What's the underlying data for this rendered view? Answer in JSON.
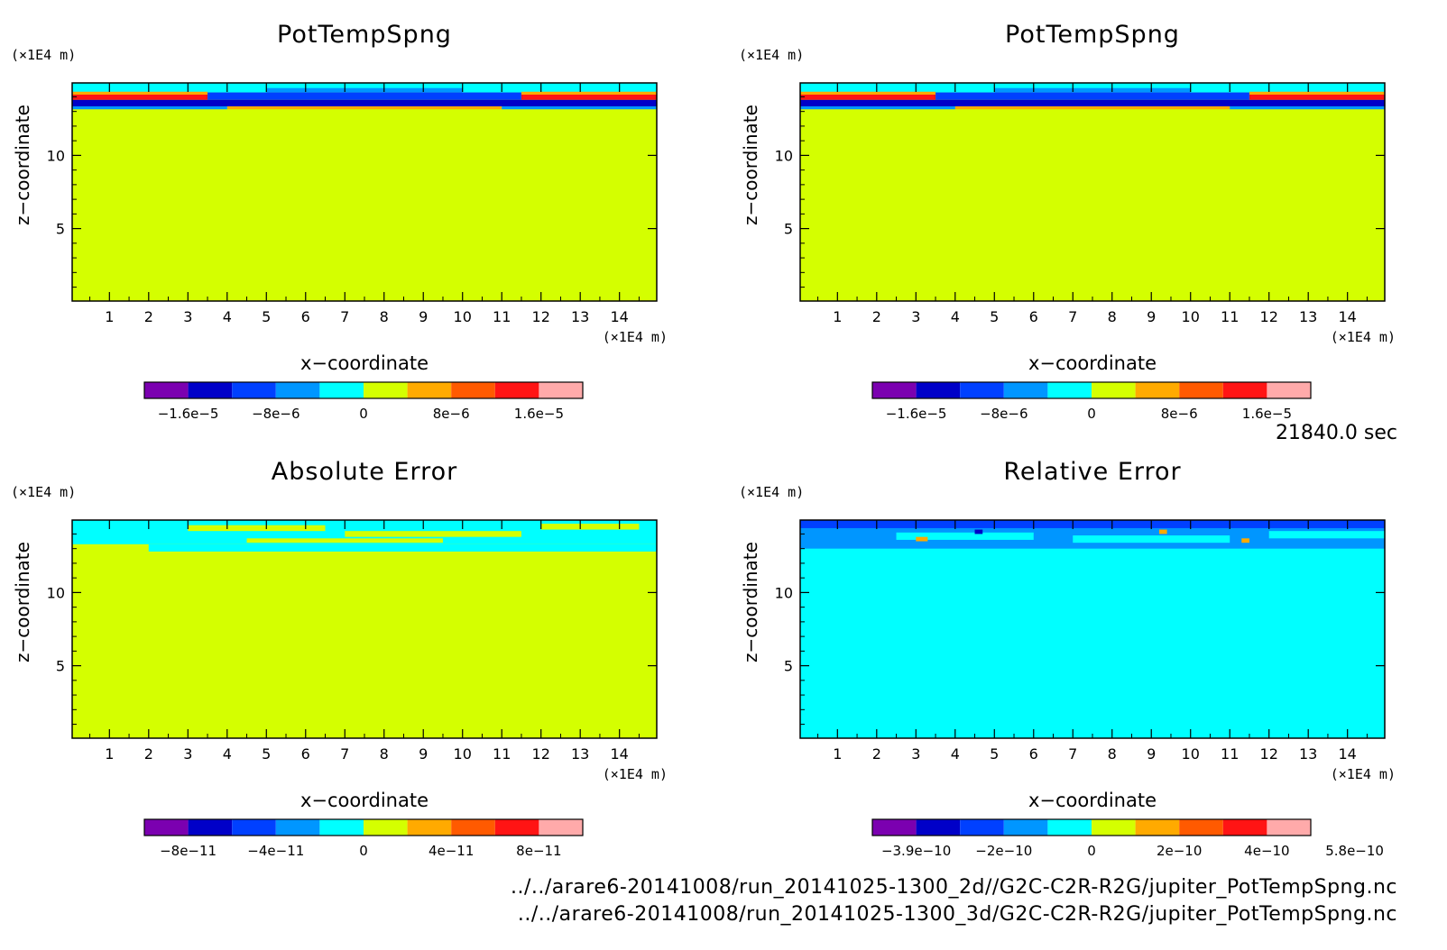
{
  "time_label": "21840.0 sec",
  "footer": {
    "path_2d": "../../arare6-20141008/run_20141025-1300_2d//G2C-C2R-R2G/jupiter_PotTempSpng.nc",
    "path_3d": "../../arare6-20141008/run_20141025-1300_3d/G2C-C2R-R2G/jupiter_PotTempSpng.nc"
  },
  "chart_data": [
    {
      "type": "heatmap",
      "title": "PotTempSpng",
      "xlabel": "x−coordinate",
      "ylabel": "z−coordinate",
      "x_unit": "(×1E4 m)",
      "y_unit": "(×1E4 m)",
      "xlim": [
        0.05,
        14.95
      ],
      "ylim": [
        0.05,
        14.95
      ],
      "x_ticks": [
        "1",
        "2",
        "3",
        "4",
        "5",
        "6",
        "7",
        "8",
        "9",
        "10",
        "11",
        "12",
        "13",
        "14"
      ],
      "y_ticks": [
        "5",
        "10"
      ],
      "field": "sponge",
      "background_color": "#d4ff00",
      "colorbar": {
        "colors": [
          "#7b00b0",
          "#0000c8",
          "#0040ff",
          "#0096ff",
          "#00ffff",
          "#d4ff00",
          "#ffaa00",
          "#ff5a00",
          "#ff1414",
          "#ffaaaa"
        ],
        "tick_labels": [
          "−1.6e−5",
          "−8e−6",
          "0",
          "8e−6",
          "1.6e−5"
        ]
      }
    },
    {
      "type": "heatmap",
      "title": "PotTempSpng",
      "xlabel": "x−coordinate",
      "ylabel": "z−coordinate",
      "x_unit": "(×1E4 m)",
      "y_unit": "(×1E4 m)",
      "xlim": [
        0.05,
        14.95
      ],
      "ylim": [
        0.05,
        14.95
      ],
      "x_ticks": [
        "1",
        "2",
        "3",
        "4",
        "5",
        "6",
        "7",
        "8",
        "9",
        "10",
        "11",
        "12",
        "13",
        "14"
      ],
      "y_ticks": [
        "5",
        "10"
      ],
      "field": "sponge",
      "background_color": "#d4ff00",
      "colorbar": {
        "colors": [
          "#7b00b0",
          "#0000c8",
          "#0040ff",
          "#0096ff",
          "#00ffff",
          "#d4ff00",
          "#ffaa00",
          "#ff5a00",
          "#ff1414",
          "#ffaaaa"
        ],
        "tick_labels": [
          "−1.6e−5",
          "−8e−6",
          "0",
          "8e−6",
          "1.6e−5"
        ]
      }
    },
    {
      "type": "heatmap",
      "title": "Absolute Error",
      "xlabel": "x−coordinate",
      "ylabel": "z−coordinate",
      "x_unit": "(×1E4 m)",
      "y_unit": "(×1E4 m)",
      "xlim": [
        0.05,
        14.95
      ],
      "ylim": [
        0.05,
        14.95
      ],
      "x_ticks": [
        "1",
        "2",
        "3",
        "4",
        "5",
        "6",
        "7",
        "8",
        "9",
        "10",
        "11",
        "12",
        "13",
        "14"
      ],
      "y_ticks": [
        "5",
        "10"
      ],
      "field": "abs_error",
      "background_color": "#d4ff00",
      "colorbar": {
        "colors": [
          "#7b00b0",
          "#0000c8",
          "#0040ff",
          "#0096ff",
          "#00ffff",
          "#d4ff00",
          "#ffaa00",
          "#ff5a00",
          "#ff1414",
          "#ffaaaa"
        ],
        "tick_labels": [
          "−8e−11",
          "−4e−11",
          "0",
          "4e−11",
          "8e−11"
        ]
      }
    },
    {
      "type": "heatmap",
      "title": "Relative Error",
      "xlabel": "x−coordinate",
      "ylabel": "z−coordinate",
      "x_unit": "(×1E4 m)",
      "y_unit": "(×1E4 m)",
      "xlim": [
        0.05,
        14.95
      ],
      "ylim": [
        0.05,
        14.95
      ],
      "x_ticks": [
        "1",
        "2",
        "3",
        "4",
        "5",
        "6",
        "7",
        "8",
        "9",
        "10",
        "11",
        "12",
        "13",
        "14"
      ],
      "y_ticks": [
        "5",
        "10"
      ],
      "field": "rel_error",
      "background_color": "#00ffff",
      "colorbar": {
        "colors": [
          "#7b00b0",
          "#0000c8",
          "#0040ff",
          "#0096ff",
          "#00ffff",
          "#d4ff00",
          "#ffaa00",
          "#ff5a00",
          "#ff1414",
          "#ffaaaa"
        ],
        "tick_labels": [
          "−3.9e−10",
          "−2e−10",
          "0",
          "2e−10",
          "4e−10",
          "5.8e−10"
        ]
      }
    }
  ]
}
